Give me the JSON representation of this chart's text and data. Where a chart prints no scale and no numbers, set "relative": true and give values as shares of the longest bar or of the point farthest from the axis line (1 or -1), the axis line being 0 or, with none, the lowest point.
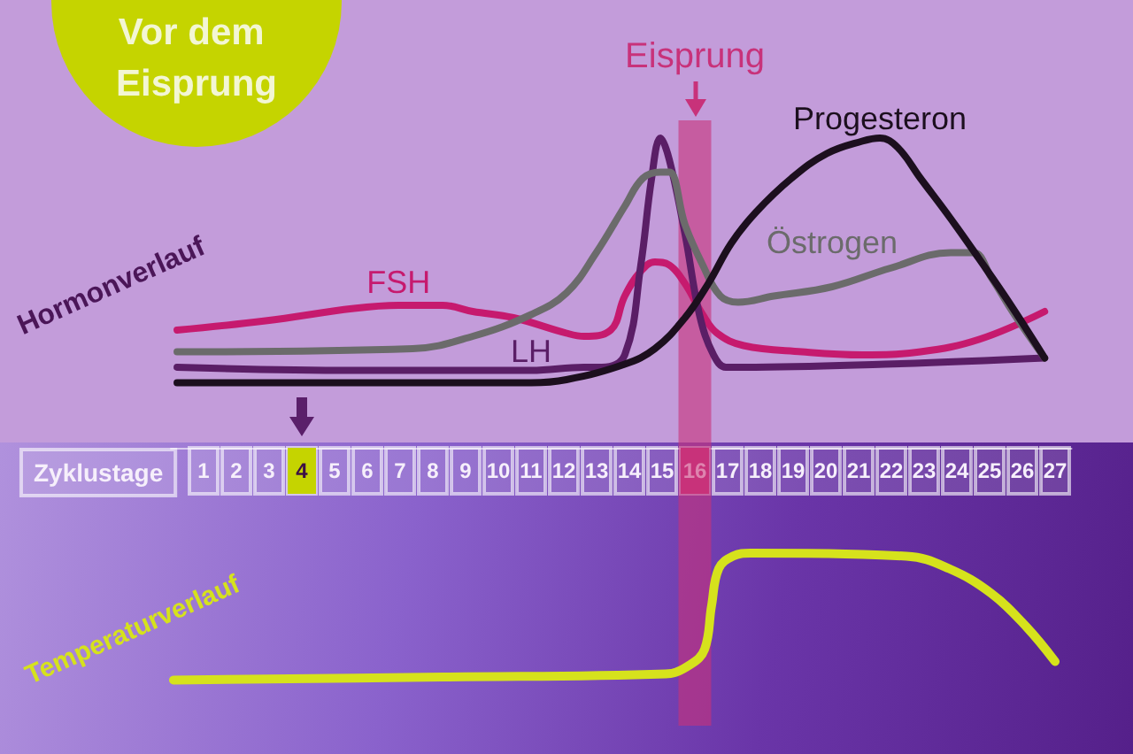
{
  "chart_data": {
    "type": "line",
    "title": "Vor dem Eisprung",
    "ylabel": "Hormonverlauf",
    "xlabel": "Zyklustage",
    "relative": true,
    "xlim": [
      0,
      27.5
    ],
    "xticks": [
      1,
      2,
      3,
      4,
      5,
      6,
      7,
      8,
      9,
      10,
      11,
      12,
      13,
      14,
      15,
      16,
      17,
      18,
      19,
      20,
      21,
      22,
      23,
      24,
      25,
      26,
      27
    ],
    "tick_labels": "x",
    "grid": false,
    "legend": false,
    "marker": "none",
    "bands": [
      {
        "axis": "x",
        "from": 15.5,
        "to": 16.5,
        "label": "Eisprung",
        "color": "#c8327a"
      }
    ],
    "series": [
      {
        "name": "FSH",
        "color": "#c61a6e",
        "x": [
          0.19,
          2.89,
          5.59,
          6.95,
          8.3,
          9.22,
          10.46,
          12.08,
          12.62,
          13.43,
          13.86,
          14.35,
          14.78,
          15.22,
          15.7,
          16.24,
          16.68,
          17.49,
          19.27,
          21.11,
          22.89,
          24.68,
          26.68
        ],
        "values": [
          0.38,
          0.41,
          0.45,
          0.46,
          0.46,
          0.44,
          0.42,
          0.37,
          0.36,
          0.38,
          0.49,
          0.57,
          0.6,
          0.59,
          0.53,
          0.43,
          0.37,
          0.33,
          0.31,
          0.3,
          0.31,
          0.35,
          0.44
        ]
      },
      {
        "name": "LH",
        "color": "#5a1e66",
        "x": [
          0.19,
          5.59,
          11.0,
          12.62,
          13.16,
          13.86,
          14.35,
          14.68,
          14.95,
          15.22,
          15.7,
          16.14,
          16.57,
          16.95,
          17.49,
          21.81,
          26.68
        ],
        "values": [
          0.26,
          0.25,
          0.25,
          0.26,
          0.26,
          0.3,
          0.59,
          0.87,
          1.0,
          0.93,
          0.69,
          0.43,
          0.3,
          0.26,
          0.26,
          0.27,
          0.29
        ]
      },
      {
        "name": "Östrogen",
        "color": "#6b6b6b",
        "x": [
          0.19,
          7.38,
          9.22,
          11.0,
          12.08,
          12.99,
          13.86,
          14.41,
          14.95,
          15.22,
          15.7,
          16.24,
          16.78,
          17.32,
          18.41,
          20.19,
          21.97,
          23.81,
          24.51,
          25.05,
          25.76,
          26.68
        ],
        "values": [
          0.31,
          0.32,
          0.36,
          0.43,
          0.5,
          0.63,
          0.78,
          0.87,
          0.89,
          0.89,
          0.72,
          0.59,
          0.49,
          0.47,
          0.49,
          0.52,
          0.58,
          0.63,
          0.63,
          0.55,
          0.43,
          0.29
        ]
      },
      {
        "name": "Progesteron",
        "color": "#1c0f1e",
        "x": [
          0.19,
          5.59,
          11.0,
          12.08,
          13.86,
          14.78,
          15.7,
          16.41,
          17.11,
          17.86,
          18.95,
          20.03,
          21.11,
          21.65,
          22.19,
          22.89,
          23.81,
          24.68,
          25.59,
          26.68
        ],
        "values": [
          0.21,
          0.21,
          0.21,
          0.22,
          0.27,
          0.32,
          0.42,
          0.53,
          0.66,
          0.76,
          0.87,
          0.95,
          0.99,
          1.0,
          0.97,
          0.87,
          0.74,
          0.61,
          0.47,
          0.29
        ]
      },
      {
        "name": "Temperaturverlauf",
        "color": "#d6e21c",
        "x": [
          0.08,
          8.3,
          15.11,
          15.86,
          16.3,
          16.51,
          16.73,
          17.16,
          17.7,
          22.46,
          23.76,
          25.05,
          26.14,
          27.0
        ],
        "values": [
          -0.75,
          -0.74,
          -0.73,
          -0.7,
          -0.65,
          -0.51,
          -0.39,
          -0.35,
          -0.34,
          -0.35,
          -0.39,
          -0.47,
          -0.58,
          -0.69
        ]
      },
      {
        "type": "scatter",
        "color": "#5a1f6a",
        "marker": "triangle",
        "x": [
          4
        ],
        "values": [
          0.1
        ]
      }
    ]
  }
}
